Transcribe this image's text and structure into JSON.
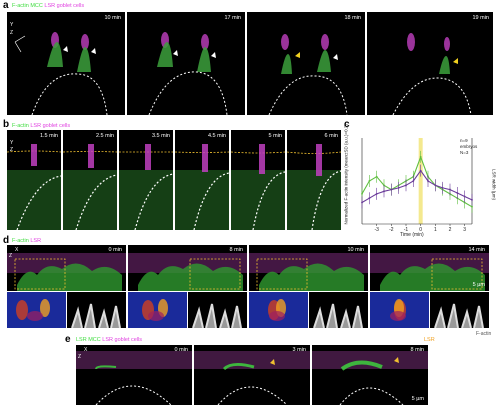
{
  "panel_a": {
    "letter": "a",
    "label_green": "F-actin MCC",
    "label_mag": "LSR goblet cells",
    "axis_y": "Y",
    "axis_z": "Z",
    "times": [
      "10 min",
      "17 min",
      "18 min",
      "19 min"
    ]
  },
  "panel_b": {
    "letter": "b",
    "label_green": "F-actin",
    "label_mag": "LSR goblet cells",
    "axis_y": "Y",
    "axis_z": "Z",
    "times": [
      "1.5 min",
      "2.5 min",
      "3.5 min",
      "4.5 min",
      "5 min",
      "6 min"
    ]
  },
  "panel_c": {
    "letter": "c",
    "ylabel_left": "Normalized F-actin intensity (mean±SD (a.u.)=0.2)",
    "ylabel_right": "LSR width (µm)",
    "xlabel": "Time (min)",
    "legend": [
      "n=9",
      "embryos",
      "N=3"
    ],
    "chart_data": {
      "type": "line",
      "xlabel": "Time (min)",
      "x": [
        -4,
        -3.5,
        -3,
        -2.5,
        -2,
        -1.5,
        -1,
        -0.5,
        0,
        0.5,
        1,
        1.5,
        2,
        2.5,
        3,
        3.5
      ],
      "xticks": [
        -3,
        -2,
        -1,
        0,
        1,
        2,
        3
      ],
      "series": [
        {
          "color": "#5fbf3f",
          "values": [
            0.35,
            0.5,
            0.55,
            0.45,
            0.4,
            0.45,
            0.5,
            0.55,
            0.78,
            0.55,
            0.45,
            0.4,
            0.35,
            0.3,
            0.25,
            0.2
          ]
        },
        {
          "color": "#6a3a9a",
          "values": [
            0.25,
            0.3,
            0.35,
            0.38,
            0.4,
            0.42,
            0.45,
            0.5,
            0.62,
            0.5,
            0.45,
            0.42,
            0.4,
            0.36,
            0.32,
            0.28
          ]
        }
      ],
      "highlight_x": 0,
      "ylim": [
        0,
        1
      ],
      "grid": false
    }
  },
  "panel_d": {
    "letter": "d",
    "label_green": "F-actin",
    "label_mag": "LSR",
    "axis_x": "X",
    "axis_z": "Z",
    "times": [
      "0 min",
      "8 min",
      "10 min",
      "14 min"
    ],
    "scale": "5 µm",
    "side_label": "F-actin"
  },
  "panel_e": {
    "letter": "e",
    "label_green": "LSR MCC",
    "label_mag": "LSR goblet cells",
    "axis_x": "X",
    "axis_z": "Z",
    "times": [
      "0 min",
      "3 min",
      "8 min"
    ],
    "scale": "5 µm",
    "side_label": "LSR"
  }
}
